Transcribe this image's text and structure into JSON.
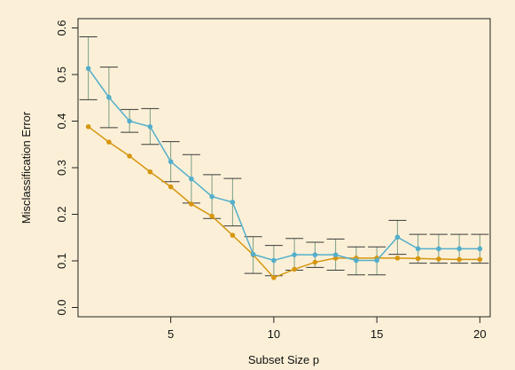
{
  "chart_data": {
    "type": "line",
    "title": "",
    "xlabel": "Subset Size p",
    "ylabel": "Misclassification Error",
    "xlim": [
      0.5,
      20.5
    ],
    "ylim": [
      -0.02,
      0.62
    ],
    "x_ticks": [
      5,
      10,
      15,
      20
    ],
    "y_ticks": [
      0.0,
      0.1,
      0.2,
      0.3,
      0.4,
      0.5,
      0.6
    ],
    "x": [
      1,
      2,
      3,
      4,
      5,
      6,
      7,
      8,
      9,
      10,
      11,
      12,
      13,
      14,
      15,
      16,
      17,
      18,
      19,
      20
    ],
    "series": [
      {
        "color": "#d6960f",
        "values": [
          0.388,
          0.355,
          0.325,
          0.291,
          0.259,
          0.222,
          0.196,
          0.155,
          0.113,
          0.064,
          0.082,
          0.097,
          0.106,
          0.106,
          0.106,
          0.106,
          0.105,
          0.104,
          0.103,
          0.103
        ]
      },
      {
        "color": "#53aecb",
        "error_bar_color": "#7a9e86",
        "values": [
          0.513,
          0.451,
          0.4,
          0.388,
          0.313,
          0.276,
          0.238,
          0.226,
          0.114,
          0.101,
          0.113,
          0.113,
          0.113,
          0.101,
          0.101,
          0.151,
          0.126,
          0.126,
          0.126,
          0.126
        ],
        "error_low": [
          0.446,
          0.386,
          0.376,
          0.35,
          0.27,
          0.224,
          0.191,
          0.175,
          0.073,
          0.068,
          0.08,
          0.086,
          0.08,
          0.07,
          0.07,
          0.114,
          0.095,
          0.095,
          0.095,
          0.095
        ],
        "error_high": [
          0.581,
          0.516,
          0.425,
          0.427,
          0.356,
          0.328,
          0.285,
          0.277,
          0.152,
          0.133,
          0.148,
          0.14,
          0.147,
          0.13,
          0.13,
          0.187,
          0.157,
          0.157,
          0.157,
          0.157
        ]
      }
    ]
  }
}
